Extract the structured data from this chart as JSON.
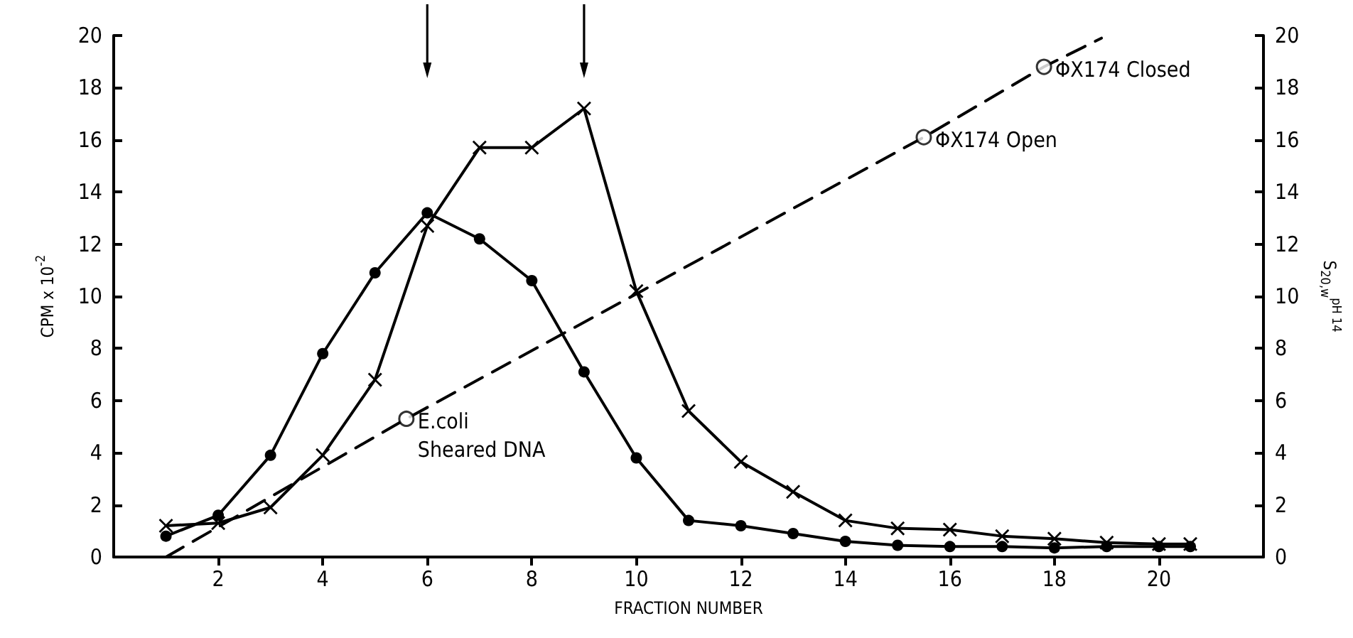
{
  "chart_data": {
    "type": "line",
    "xlabel": "FRACTION NUMBER",
    "ylabel": "CPM x 10$^{-2}$",
    "y2label": "S$_{20,w}$$^{pH 14}$",
    "xlim": [
      0,
      22
    ],
    "xticks": [
      2,
      4,
      6,
      8,
      10,
      12,
      14,
      16,
      18,
      20
    ],
    "ylim": [
      0,
      20
    ],
    "yticks": [
      0,
      2,
      4,
      6,
      8,
      10,
      12,
      14,
      16,
      18,
      20
    ],
    "y2lim": [
      0,
      20
    ],
    "y2ticks": [
      0,
      2,
      4,
      6,
      8,
      10,
      12,
      14,
      16,
      18,
      20
    ],
    "grid": false,
    "series": [
      {
        "color": "#000000",
        "marker": "circle",
        "line_style": "solid",
        "x": [
          1,
          2,
          3,
          4,
          5,
          6,
          7,
          8,
          9,
          10,
          11,
          12,
          13,
          14,
          15,
          16,
          17,
          18,
          19,
          20,
          20.6
        ],
        "values": [
          0.8,
          1.6,
          3.9,
          7.8,
          10.9,
          13.2,
          12.2,
          10.6,
          7.1,
          3.8,
          1.4,
          1.2,
          0.9,
          0.6,
          0.45,
          0.4,
          0.4,
          0.35,
          0.4,
          0.4,
          0.4
        ]
      },
      {
        "color": "#000000",
        "marker": "cross",
        "line_style": "solid",
        "x": [
          1,
          2,
          3,
          4,
          5,
          6,
          7,
          8,
          9,
          10,
          11,
          12,
          13,
          14,
          15,
          16,
          17,
          18,
          19,
          20,
          20.6
        ],
        "values": [
          1.2,
          1.3,
          1.9,
          3.9,
          6.8,
          12.7,
          15.7,
          15.7,
          17.2,
          10.2,
          5.6,
          3.65,
          2.5,
          1.4,
          1.1,
          1.05,
          0.8,
          0.7,
          0.55,
          0.5,
          0.5
        ]
      },
      {
        "color": "#000000",
        "marker": "none",
        "line_style": "dashed",
        "x": [
          1,
          5.6,
          10.1,
          15.5,
          17.8,
          18.9
        ],
        "values": [
          0,
          5.3,
          10.2,
          16.1,
          18.8,
          19.9
        ]
      },
      {
        "type": "scatter",
        "color": "#000000",
        "marker": "circle",
        "x": [
          5.6,
          15.5,
          17.8
        ],
        "values": [
          5.3,
          16.1,
          18.8
        ]
      }
    ],
    "annotations": [
      {
        "text": "E.coli\nSheared DNA",
        "x": 5.6,
        "y": 5.3
      },
      {
        "text": "ΦX174 Open",
        "x": 15.5,
        "y": 16.1
      },
      {
        "text": "ΦX174 Closed",
        "x": 17.8,
        "y": 18.8
      }
    ]
  }
}
